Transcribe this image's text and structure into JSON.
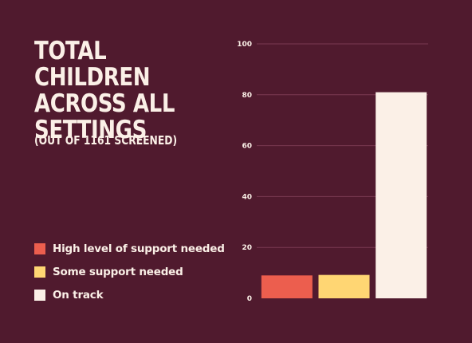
{
  "chart_data": {
    "type": "bar",
    "title": "Total children\nacross all\nsettings",
    "subtitle": "(Out of 1161 screened)",
    "categories": [
      "High level of support needed",
      "Some support needed",
      "On track"
    ],
    "values": [
      9,
      9.2,
      81
    ],
    "colors": [
      "#EC5E4E",
      "#FFD673",
      "#FBF0E7"
    ],
    "ylim": [
      0,
      100
    ],
    "yticks": [
      0,
      20,
      40,
      60,
      80,
      100
    ],
    "grid": true,
    "legend_position": "left"
  },
  "colors": {
    "background": "#501A2E",
    "text": "#FBF0E7"
  }
}
